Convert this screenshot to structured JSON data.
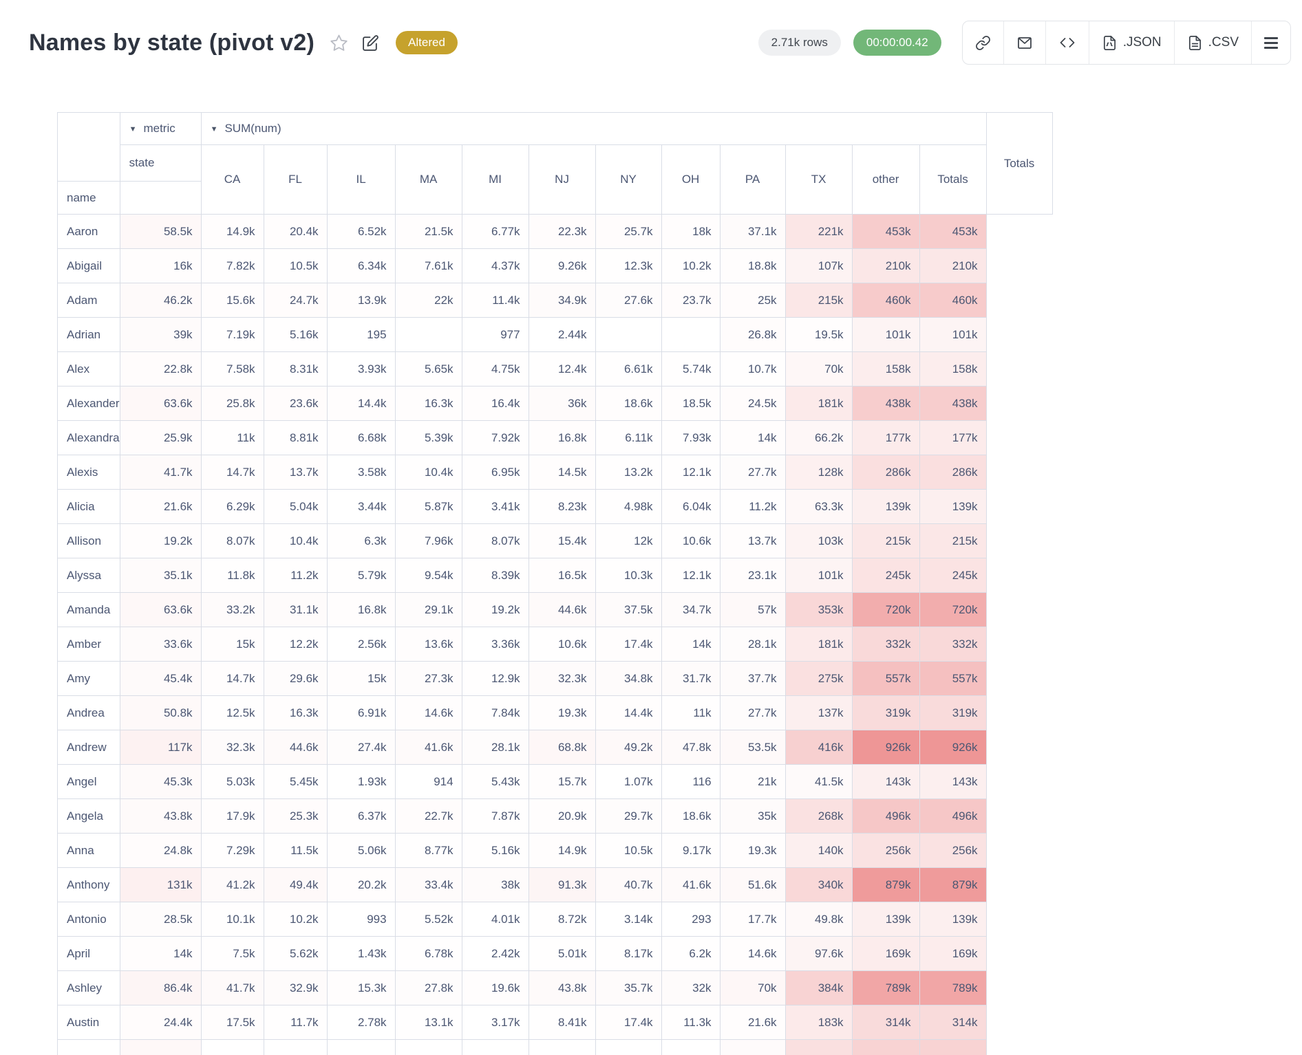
{
  "header": {
    "title": "Names by state (pivot v2)",
    "altered_badge": "Altered",
    "rows_pill": "2.71k rows",
    "timer_pill": "00:00:00.42",
    "toolbar": {
      "json_label": ".JSON",
      "csv_label": ".CSV"
    },
    "icons": {
      "star": "star-outline",
      "edit": "pencil-square",
      "link": "chain-link",
      "mail": "envelope",
      "embed": "code-brackets",
      "menu": "hamburger"
    }
  },
  "pivot": {
    "collapse_glyph": "▼",
    "metric_label": "metric",
    "sum_label": "SUM(num)",
    "state_label": "state",
    "name_label": "name",
    "row_totals_label": "Totals",
    "columns": [
      "CA",
      "FL",
      "IL",
      "MA",
      "MI",
      "NJ",
      "NY",
      "OH",
      "PA",
      "TX",
      "other",
      "Totals"
    ],
    "rows": [
      {
        "name": "Aaron",
        "cells": [
          "58.5k",
          "14.9k",
          "20.4k",
          "6.52k",
          "21.5k",
          "6.77k",
          "22.3k",
          "25.7k",
          "18k",
          "37.1k",
          "221k",
          "453k"
        ],
        "total": "453k"
      },
      {
        "name": "Abigail",
        "cells": [
          "16k",
          "7.82k",
          "10.5k",
          "6.34k",
          "7.61k",
          "4.37k",
          "9.26k",
          "12.3k",
          "10.2k",
          "18.8k",
          "107k",
          "210k"
        ],
        "total": "210k"
      },
      {
        "name": "Adam",
        "cells": [
          "46.2k",
          "15.6k",
          "24.7k",
          "13.9k",
          "22k",
          "11.4k",
          "34.9k",
          "27.6k",
          "23.7k",
          "25k",
          "215k",
          "460k"
        ],
        "total": "460k"
      },
      {
        "name": "Adrian",
        "cells": [
          "39k",
          "7.19k",
          "5.16k",
          "195",
          "",
          "977",
          "2.44k",
          "",
          "",
          "26.8k",
          "19.5k",
          "101k"
        ],
        "total": "101k"
      },
      {
        "name": "Alex",
        "cells": [
          "22.8k",
          "7.58k",
          "8.31k",
          "3.93k",
          "5.65k",
          "4.75k",
          "12.4k",
          "6.61k",
          "5.74k",
          "10.7k",
          "70k",
          "158k"
        ],
        "total": "158k"
      },
      {
        "name": "Alexander",
        "cells": [
          "63.6k",
          "25.8k",
          "23.6k",
          "14.4k",
          "16.3k",
          "16.4k",
          "36k",
          "18.6k",
          "18.5k",
          "24.5k",
          "181k",
          "438k"
        ],
        "total": "438k"
      },
      {
        "name": "Alexandra",
        "cells": [
          "25.9k",
          "11k",
          "8.81k",
          "6.68k",
          "5.39k",
          "7.92k",
          "16.8k",
          "6.11k",
          "7.93k",
          "14k",
          "66.2k",
          "177k"
        ],
        "total": "177k"
      },
      {
        "name": "Alexis",
        "cells": [
          "41.7k",
          "14.7k",
          "13.7k",
          "3.58k",
          "10.4k",
          "6.95k",
          "14.5k",
          "13.2k",
          "12.1k",
          "27.7k",
          "128k",
          "286k"
        ],
        "total": "286k"
      },
      {
        "name": "Alicia",
        "cells": [
          "21.6k",
          "6.29k",
          "5.04k",
          "3.44k",
          "5.87k",
          "3.41k",
          "8.23k",
          "4.98k",
          "6.04k",
          "11.2k",
          "63.3k",
          "139k"
        ],
        "total": "139k"
      },
      {
        "name": "Allison",
        "cells": [
          "19.2k",
          "8.07k",
          "10.4k",
          "6.3k",
          "7.96k",
          "8.07k",
          "15.4k",
          "12k",
          "10.6k",
          "13.7k",
          "103k",
          "215k"
        ],
        "total": "215k"
      },
      {
        "name": "Alyssa",
        "cells": [
          "35.1k",
          "11.8k",
          "11.2k",
          "5.79k",
          "9.54k",
          "8.39k",
          "16.5k",
          "10.3k",
          "12.1k",
          "23.1k",
          "101k",
          "245k"
        ],
        "total": "245k"
      },
      {
        "name": "Amanda",
        "cells": [
          "63.6k",
          "33.2k",
          "31.1k",
          "16.8k",
          "29.1k",
          "19.2k",
          "44.6k",
          "37.5k",
          "34.7k",
          "57k",
          "353k",
          "720k"
        ],
        "total": "720k"
      },
      {
        "name": "Amber",
        "cells": [
          "33.6k",
          "15k",
          "12.2k",
          "2.56k",
          "13.6k",
          "3.36k",
          "10.6k",
          "17.4k",
          "14k",
          "28.1k",
          "181k",
          "332k"
        ],
        "total": "332k"
      },
      {
        "name": "Amy",
        "cells": [
          "45.4k",
          "14.7k",
          "29.6k",
          "15k",
          "27.3k",
          "12.9k",
          "32.3k",
          "34.8k",
          "31.7k",
          "37.7k",
          "275k",
          "557k"
        ],
        "total": "557k"
      },
      {
        "name": "Andrea",
        "cells": [
          "50.8k",
          "12.5k",
          "16.3k",
          "6.91k",
          "14.6k",
          "7.84k",
          "19.3k",
          "14.4k",
          "11k",
          "27.7k",
          "137k",
          "319k"
        ],
        "total": "319k"
      },
      {
        "name": "Andrew",
        "cells": [
          "117k",
          "32.3k",
          "44.6k",
          "27.4k",
          "41.6k",
          "28.1k",
          "68.8k",
          "49.2k",
          "47.8k",
          "53.5k",
          "416k",
          "926k"
        ],
        "total": "926k"
      },
      {
        "name": "Angel",
        "cells": [
          "45.3k",
          "5.03k",
          "5.45k",
          "1.93k",
          "914",
          "5.43k",
          "15.7k",
          "1.07k",
          "116",
          "21k",
          "41.5k",
          "143k"
        ],
        "total": "143k"
      },
      {
        "name": "Angela",
        "cells": [
          "43.8k",
          "17.9k",
          "25.3k",
          "6.37k",
          "22.7k",
          "7.87k",
          "20.9k",
          "29.7k",
          "18.6k",
          "35k",
          "268k",
          "496k"
        ],
        "total": "496k"
      },
      {
        "name": "Anna",
        "cells": [
          "24.8k",
          "7.29k",
          "11.5k",
          "5.06k",
          "8.77k",
          "5.16k",
          "14.9k",
          "10.5k",
          "9.17k",
          "19.3k",
          "140k",
          "256k"
        ],
        "total": "256k"
      },
      {
        "name": "Anthony",
        "cells": [
          "131k",
          "41.2k",
          "49.4k",
          "20.2k",
          "33.4k",
          "38k",
          "91.3k",
          "40.7k",
          "41.6k",
          "51.6k",
          "340k",
          "879k"
        ],
        "total": "879k"
      },
      {
        "name": "Antonio",
        "cells": [
          "28.5k",
          "10.1k",
          "10.2k",
          "993",
          "5.52k",
          "4.01k",
          "8.72k",
          "3.14k",
          "293",
          "17.7k",
          "49.8k",
          "139k"
        ],
        "total": "139k"
      },
      {
        "name": "April",
        "cells": [
          "14k",
          "7.5k",
          "5.62k",
          "1.43k",
          "6.78k",
          "2.42k",
          "5.01k",
          "8.17k",
          "6.2k",
          "14.6k",
          "97.6k",
          "169k"
        ],
        "total": "169k"
      },
      {
        "name": "Ashley",
        "cells": [
          "86.4k",
          "41.7k",
          "32.9k",
          "15.3k",
          "27.8k",
          "19.6k",
          "43.8k",
          "35.7k",
          "32k",
          "70k",
          "384k",
          "789k"
        ],
        "total": "789k"
      },
      {
        "name": "Austin",
        "cells": [
          "24.4k",
          "17.5k",
          "11.7k",
          "2.78k",
          "13.1k",
          "3.17k",
          "8.41k",
          "17.4k",
          "11.3k",
          "21.6k",
          "183k",
          "314k"
        ],
        "total": "314k"
      }
    ],
    "heatmap_base_color": "#ee9696"
  }
}
